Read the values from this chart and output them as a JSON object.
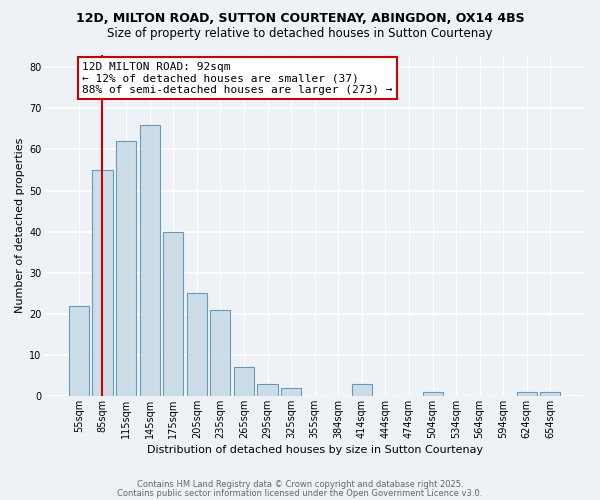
{
  "title1": "12D, MILTON ROAD, SUTTON COURTENAY, ABINGDON, OX14 4BS",
  "title2": "Size of property relative to detached houses in Sutton Courtenay",
  "xlabel": "Distribution of detached houses by size in Sutton Courtenay",
  "ylabel": "Number of detached properties",
  "bar_labels": [
    "55sqm",
    "85sqm",
    "115sqm",
    "145sqm",
    "175sqm",
    "205sqm",
    "235sqm",
    "265sqm",
    "295sqm",
    "325sqm",
    "355sqm",
    "384sqm",
    "414sqm",
    "444sqm",
    "474sqm",
    "504sqm",
    "534sqm",
    "564sqm",
    "594sqm",
    "624sqm",
    "654sqm"
  ],
  "bar_values": [
    22,
    55,
    62,
    66,
    40,
    25,
    21,
    7,
    3,
    2,
    0,
    0,
    3,
    0,
    0,
    1,
    0,
    0,
    0,
    1,
    1
  ],
  "bar_color": "#ccdde8",
  "bar_edge_color": "#6699bb",
  "annotation_line1": "12D MILTON ROAD: 92sqm",
  "annotation_line2": "← 12% of detached houses are smaller (37)",
  "annotation_line3": "88% of semi-detached houses are larger (273) →",
  "annotation_box_color": "#ffffff",
  "annotation_box_edge": "#cc0000",
  "red_line_color": "#cc0000",
  "ylim": [
    0,
    83
  ],
  "yticks": [
    0,
    10,
    20,
    30,
    40,
    50,
    60,
    70,
    80
  ],
  "footer1": "Contains HM Land Registry data © Crown copyright and database right 2025.",
  "footer2": "Contains public sector information licensed under the Open Government Licence v3.0.",
  "bg_color": "#eef2f7",
  "plot_bg_color": "#eef2f7",
  "grid_color": "#ffffff",
  "title1_fontsize": 9,
  "title2_fontsize": 8.5,
  "tick_fontsize": 7,
  "axis_label_fontsize": 8,
  "annotation_fontsize": 8,
  "footer_fontsize": 6
}
